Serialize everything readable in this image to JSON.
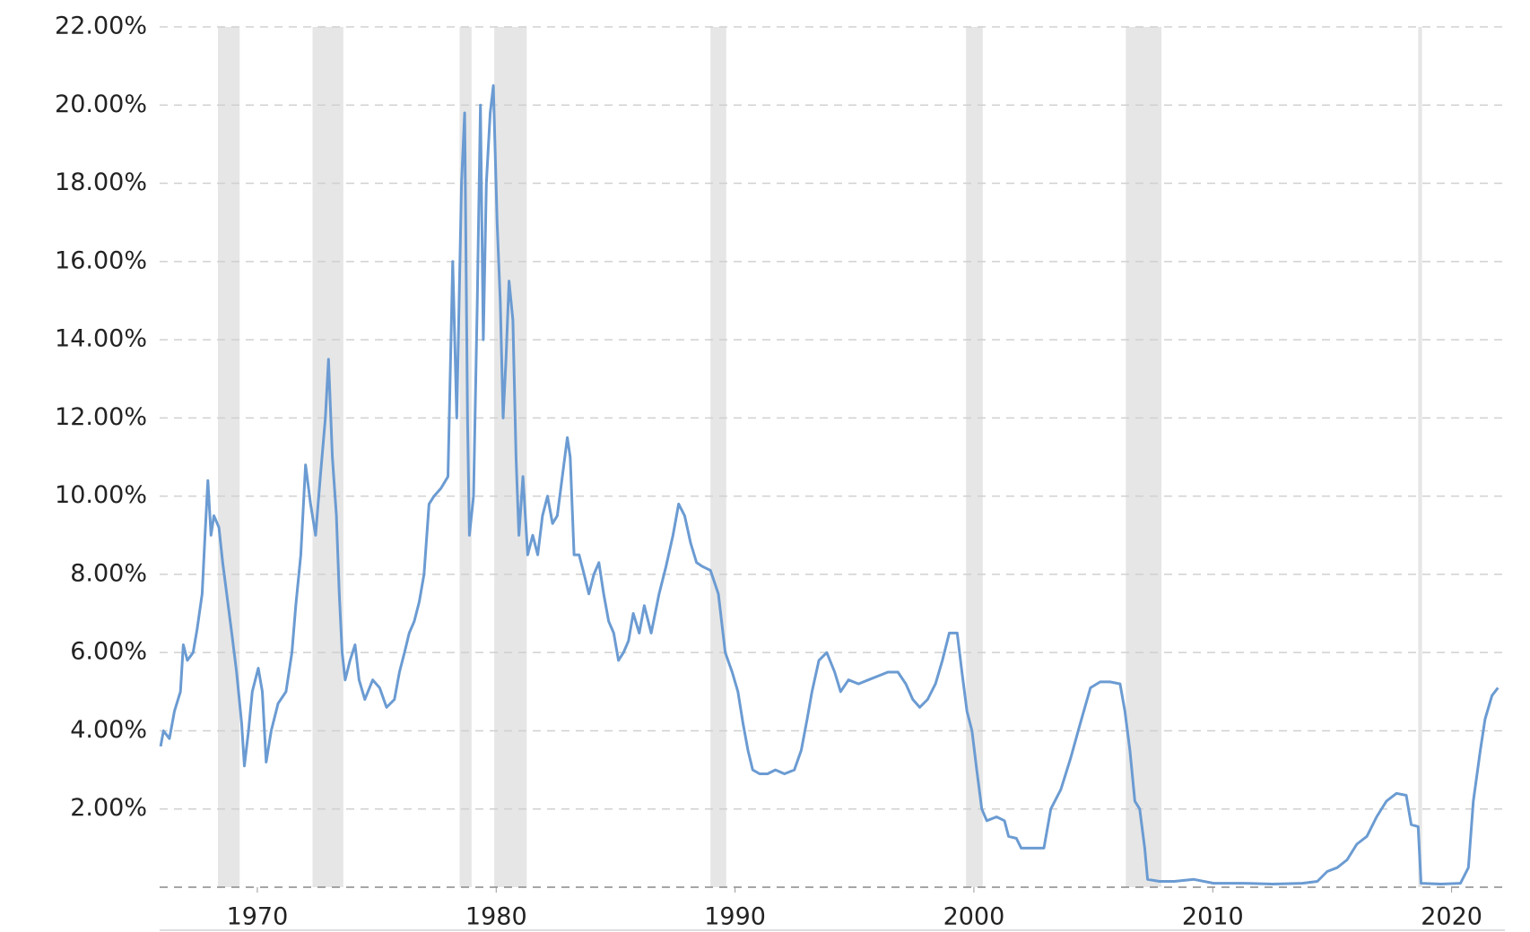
{
  "chart_data": {
    "type": "line",
    "x": [
      1965.95,
      1966.07,
      1966.32,
      1966.53,
      1966.78,
      1966.9,
      1967.07,
      1967.31,
      1967.48,
      1967.69,
      1967.81,
      1967.93,
      1968.06,
      1968.18,
      1968.39,
      1968.55,
      1968.72,
      1968.93,
      1969.13,
      1969.34,
      1969.46,
      1969.63,
      1969.79,
      1970.04,
      1970.21,
      1970.37,
      1970.58,
      1970.87,
      1971.2,
      1971.45,
      1971.61,
      1971.82,
      1972.02,
      1972.23,
      1972.44,
      1972.64,
      1972.85,
      1972.98,
      1973.14,
      1973.31,
      1973.43,
      1973.55,
      1973.68,
      1973.88,
      1974.09,
      1974.26,
      1974.5,
      1974.83,
      1975.12,
      1975.41,
      1975.74,
      1975.95,
      1976.16,
      1976.36,
      1976.57,
      1976.78,
      1976.98,
      1977.19,
      1977.4,
      1977.69,
      1977.98,
      1978.18,
      1978.35,
      1978.55,
      1978.68,
      1978.8,
      1978.88,
      1979.05,
      1979.21,
      1979.34,
      1979.46,
      1979.59,
      1979.75,
      1979.88,
      1980.04,
      1980.17,
      1980.29,
      1980.41,
      1980.54,
      1980.7,
      1980.83,
      1980.95,
      1981.12,
      1981.32,
      1981.53,
      1981.74,
      1981.94,
      1982.15,
      1982.36,
      1982.56,
      1982.77,
      1982.98,
      1983.1,
      1983.26,
      1983.47,
      1983.68,
      1983.88,
      1984.09,
      1984.3,
      1984.5,
      1984.71,
      1984.92,
      1985.12,
      1985.33,
      1985.54,
      1985.74,
      1985.99,
      1986.2,
      1986.49,
      1986.82,
      1987.11,
      1987.4,
      1987.64,
      1987.89,
      1988.14,
      1988.39,
      1988.64,
      1988.97,
      1989.3,
      1989.59,
      1989.88,
      1990.12,
      1990.33,
      1990.54,
      1990.74,
      1991.03,
      1991.36,
      1991.69,
      1992.07,
      1992.48,
      1992.77,
      1993.02,
      1993.22,
      1993.51,
      1993.84,
      1994.17,
      1994.42,
      1994.75,
      1995.17,
      1995.58,
      1995.99,
      1996.4,
      1996.82,
      1997.15,
      1997.44,
      1997.73,
      1998.06,
      1998.39,
      1998.68,
      1998.97,
      1999.3,
      1999.5,
      1999.71,
      1999.92,
      2000.12,
      2000.33,
      2000.54,
      2000.95,
      2001.28,
      2001.45,
      2001.78,
      2001.98,
      2002.4,
      2002.93,
      2003.22,
      2003.64,
      2004.05,
      2004.46,
      2004.88,
      2005.29,
      2005.7,
      2006.12,
      2006.32,
      2006.53,
      2006.74,
      2006.94,
      2007.15,
      2007.27,
      2007.77,
      2008.39,
      2009.21,
      2010.04,
      2011.28,
      2012.52,
      2013.76,
      2014.38,
      2014.79,
      2015.21,
      2015.62,
      2016.03,
      2016.45,
      2016.86,
      2017.27,
      2017.69,
      2018.1,
      2018.31,
      2018.6,
      2018.72,
      2019.55,
      2020.37,
      2020.7,
      2020.91,
      2021.2,
      2021.4,
      2021.69,
      2021.94
    ],
    "values": [
      3.6,
      4.0,
      3.8,
      4.5,
      5.0,
      6.2,
      5.8,
      6.0,
      6.6,
      7.5,
      9.0,
      10.4,
      9.0,
      9.5,
      9.2,
      8.3,
      7.5,
      6.5,
      5.5,
      4.2,
      3.1,
      4.0,
      5.0,
      5.6,
      5.0,
      3.2,
      4.0,
      4.7,
      5.0,
      6.0,
      7.2,
      8.5,
      10.8,
      9.8,
      9.0,
      10.5,
      12.0,
      13.5,
      11.0,
      9.5,
      7.5,
      6.0,
      5.3,
      5.8,
      6.2,
      5.3,
      4.8,
      5.3,
      5.1,
      4.6,
      4.8,
      5.5,
      6.0,
      6.5,
      6.8,
      7.3,
      8.0,
      9.8,
      10.0,
      10.2,
      10.5,
      16,
      12,
      18,
      19.8,
      12,
      9,
      10,
      15,
      20,
      14,
      18,
      19.8,
      20.5,
      17,
      15,
      12,
      13.5,
      15.5,
      14.5,
      11,
      9,
      10.5,
      8.5,
      9,
      8.5,
      9.5,
      10,
      9.3,
      9.5,
      10.5,
      11.5,
      11,
      8.5,
      8.5,
      8,
      7.5,
      8,
      8.3,
      7.5,
      6.8,
      6.5,
      5.8,
      6,
      6.3,
      7,
      6.5,
      7.2,
      6.5,
      7.5,
      8.2,
      9,
      9.8,
      9.5,
      8.8,
      8.3,
      8.2,
      8.1,
      7.5,
      6,
      5.5,
      5,
      4.2,
      3.5,
      3,
      2.9,
      2.9,
      3,
      2.9,
      3,
      3.5,
      4.3,
      5,
      5.8,
      6.0,
      5.5,
      5,
      5.3,
      5.2,
      5.3,
      5.4,
      5.5,
      5.5,
      5.2,
      4.8,
      4.6,
      4.8,
      5.2,
      5.8,
      6.5,
      6.5,
      5.5,
      4.5,
      4,
      3,
      2,
      1.7,
      1.8,
      1.7,
      1.3,
      1.25,
      1.0,
      1.0,
      1.0,
      2.0,
      2.5,
      3.3,
      4.2,
      5.1,
      5.25,
      5.25,
      5.2,
      4.5,
      3.5,
      2.2,
      2.0,
      1.0,
      0.2,
      0.15,
      0.15,
      0.2,
      0.1,
      0.1,
      0.08,
      0.1,
      0.15,
      0.4,
      0.5,
      0.7,
      1.1,
      1.3,
      1.8,
      2.2,
      2.4,
      2.35,
      1.6,
      1.55,
      0.1,
      0.08,
      0.1,
      0.5,
      2.2,
      3.5,
      4.3,
      4.9,
      5.1
    ],
    "color": "#6b9bd2",
    "shaded_periods": [
      [
        1968.35,
        1969.26
      ],
      [
        1972.31,
        1973.6
      ],
      [
        1978.47,
        1978.97
      ],
      [
        1979.92,
        1981.28
      ],
      [
        1988.97,
        1989.63
      ],
      [
        1999.67,
        2000.37
      ],
      [
        2006.36,
        2007.85
      ],
      [
        2018.6,
        2018.76
      ]
    ],
    "shade_color": "#e6e6e6",
    "xlim": [
      1965.91,
      2022.23
    ],
    "xticks": [
      1970,
      1980,
      1990,
      2000,
      2010,
      2020
    ],
    "ylim": [
      0,
      22
    ],
    "yticks": [
      {
        "value": 2,
        "label": "2.00%"
      },
      {
        "value": 4,
        "label": "4.00%"
      },
      {
        "value": 6,
        "label": "6.00%"
      },
      {
        "value": 8,
        "label": "8.00%"
      },
      {
        "value": 10,
        "label": "10.00%"
      },
      {
        "value": 12,
        "label": "12.00%"
      },
      {
        "value": 14,
        "label": "14.00%"
      },
      {
        "value": 16,
        "label": "16.00%"
      },
      {
        "value": 18,
        "label": "18.00%"
      },
      {
        "value": 20,
        "label": "20.00%"
      },
      {
        "value": 22,
        "label": "22.00%"
      }
    ],
    "grid": true
  }
}
